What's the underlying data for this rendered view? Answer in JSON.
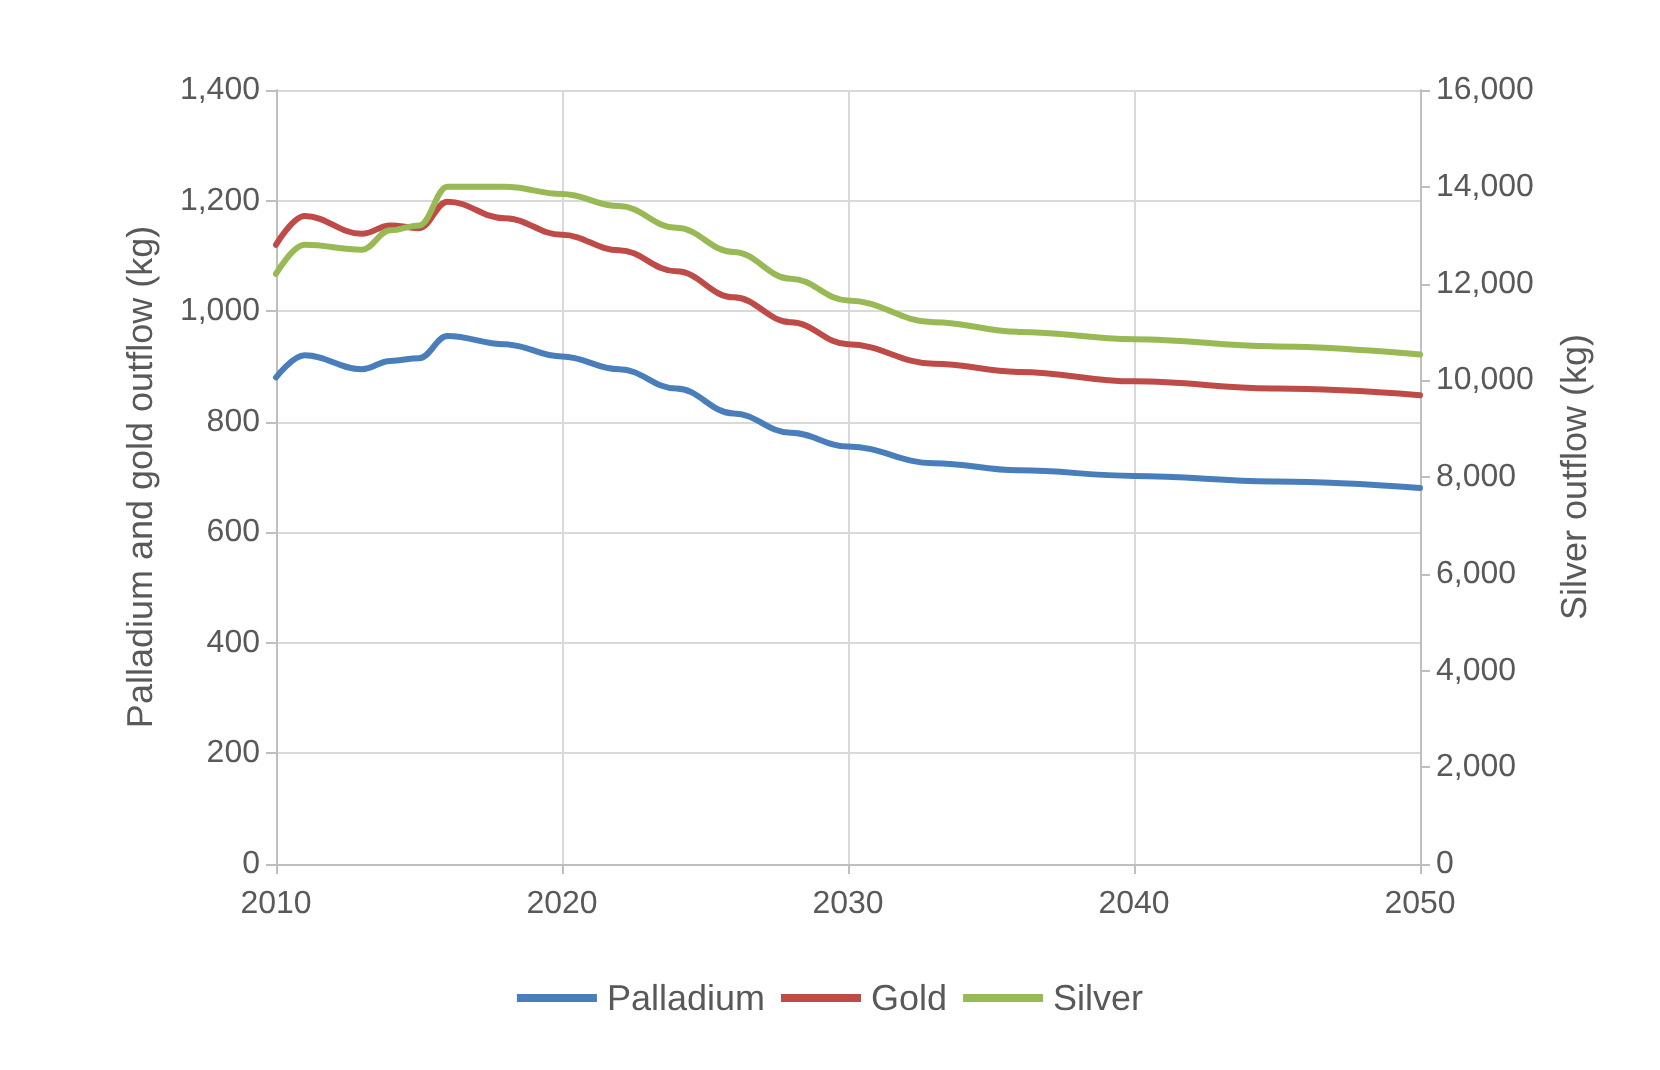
{
  "chart_data": {
    "type": "line",
    "ylabel": "Palladium and gold outflow (kg)",
    "y2label": "Silver outflow (kg)",
    "x": [
      2010,
      2011,
      2013,
      2014,
      2015,
      2016,
      2018,
      2020,
      2022,
      2024,
      2026,
      2028,
      2030,
      2033,
      2036,
      2040,
      2045,
      2050
    ],
    "series": [
      {
        "name": "Palladium",
        "color": "#4a7ebb",
        "values": [
          880,
          920,
          895,
          910,
          915,
          955,
          940,
          918,
          895,
          860,
          815,
          780,
          755,
          725,
          712,
          702,
          692,
          680
        ]
      },
      {
        "name": "Gold",
        "color": "#be4b48",
        "values": [
          1120,
          1172,
          1140,
          1155,
          1150,
          1198,
          1168,
          1138,
          1110,
          1072,
          1025,
          980,
          940,
          905,
          890,
          873,
          860,
          848
        ]
      },
      {
        "name": "Silver",
        "color": "#98b954",
        "axis": "y2",
        "values": [
          12200,
          12800,
          12700,
          13100,
          13200,
          14000,
          14000,
          13850,
          13600,
          13150,
          12650,
          12100,
          11650,
          11200,
          11000,
          10850,
          10700,
          10530
        ]
      }
    ],
    "xlim": [
      2010,
      2050
    ],
    "xticks": [
      2010,
      2020,
      2030,
      2040,
      2050
    ],
    "ylim": [
      0,
      1400
    ],
    "yticks": [
      {
        "value": 0,
        "label": "0"
      },
      {
        "value": 200,
        "label": "200"
      },
      {
        "value": 400,
        "label": "400"
      },
      {
        "value": 600,
        "label": "600"
      },
      {
        "value": 800,
        "label": "800"
      },
      {
        "value": 1000,
        "label": "1,000"
      },
      {
        "value": 1200,
        "label": "1,200"
      },
      {
        "value": 1400,
        "label": "1,400"
      }
    ],
    "y2lim": [
      0,
      16000
    ],
    "y2ticks": [
      {
        "value": 0,
        "label": "0"
      },
      {
        "value": 2000,
        "label": "2,000"
      },
      {
        "value": 4000,
        "label": "4,000"
      },
      {
        "value": 6000,
        "label": "6,000"
      },
      {
        "value": 8000,
        "label": "8,000"
      },
      {
        "value": 10000,
        "label": "10,000"
      },
      {
        "value": 12000,
        "label": "12,000"
      },
      {
        "value": 14000,
        "label": "14,000"
      },
      {
        "value": 16000,
        "label": "16,000"
      }
    ],
    "grid": true,
    "legend": "bottom",
    "marker": "none",
    "line_style": "solid"
  }
}
